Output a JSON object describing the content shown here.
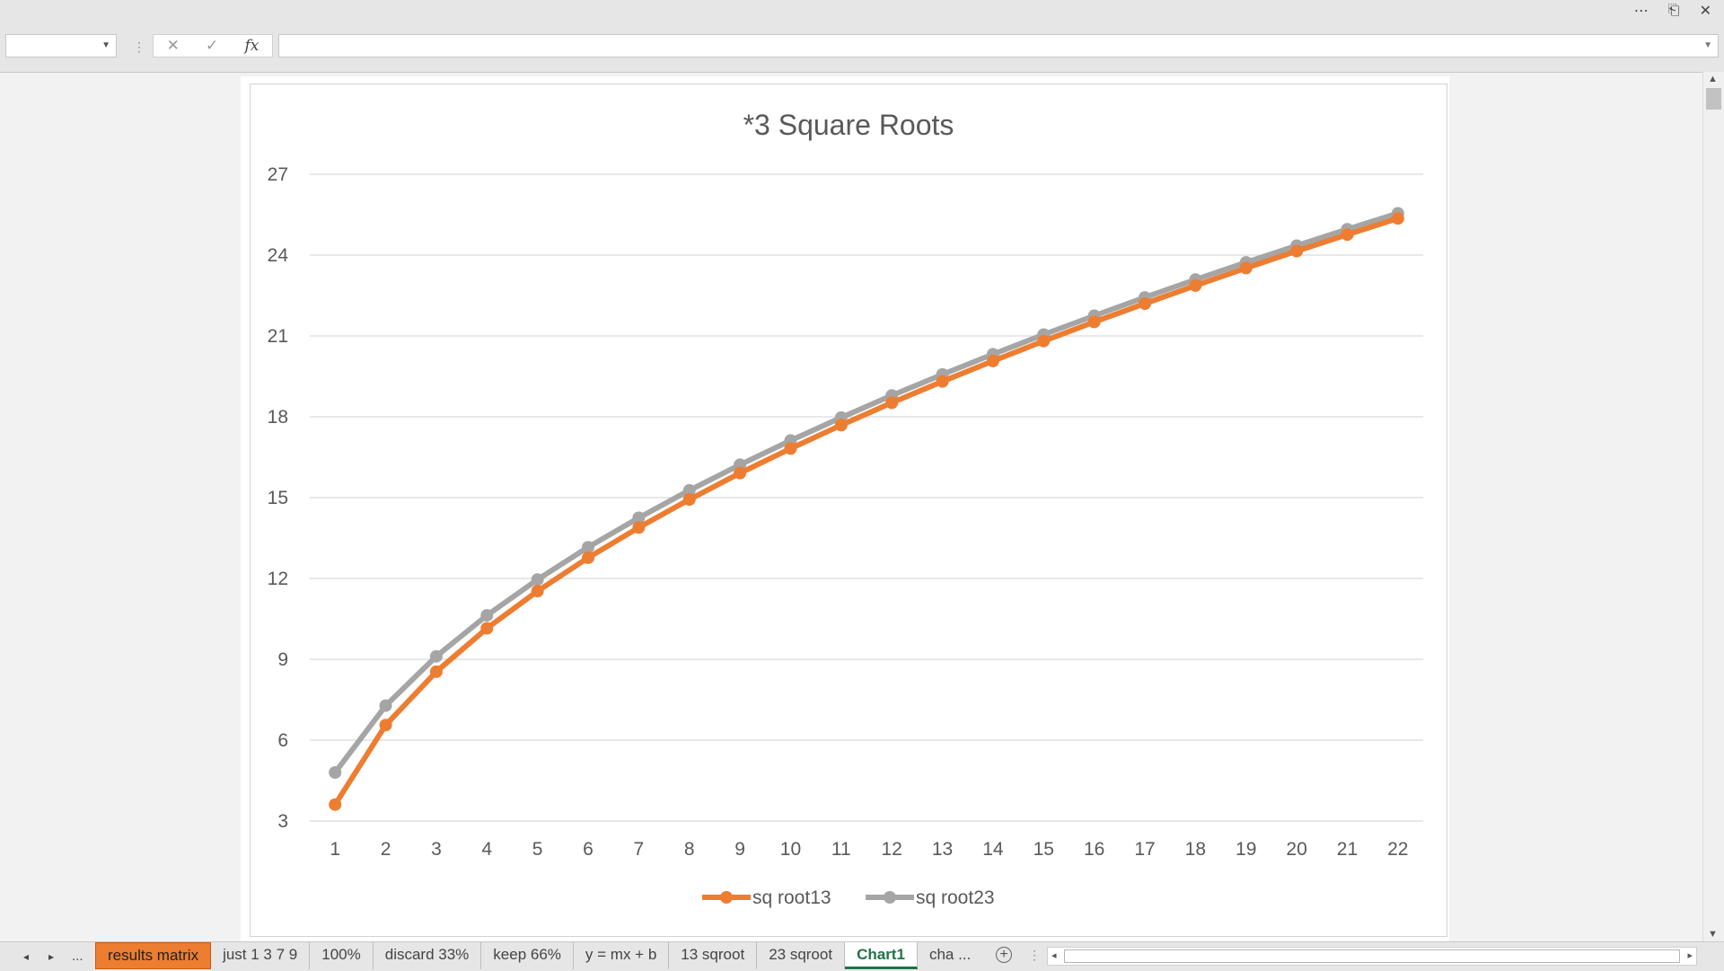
{
  "window": {
    "more_icon": "⋯",
    "restore_icon": "⎗",
    "close_icon": "✕"
  },
  "formula_bar": {
    "name_box_value": "",
    "cancel_icon": "✕",
    "enter_icon": "✓",
    "fx_label": "fx",
    "formula_value": ""
  },
  "chart_data": {
    "type": "line",
    "title": "*3 Square Roots",
    "xlabel": "",
    "ylabel": "",
    "categories": [
      "1",
      "2",
      "3",
      "4",
      "5",
      "6",
      "7",
      "8",
      "9",
      "10",
      "11",
      "12",
      "13",
      "14",
      "15",
      "16",
      "17",
      "18",
      "19",
      "20",
      "21",
      "22"
    ],
    "ylim": [
      3,
      27
    ],
    "yticks": [
      3,
      6,
      9,
      12,
      15,
      18,
      21,
      24,
      27
    ],
    "grid": true,
    "legend_position": "bottom",
    "series": [
      {
        "name": "sq root13",
        "color": "#ED7D31",
        "values": [
          3.61,
          6.56,
          8.54,
          10.15,
          11.53,
          12.77,
          13.89,
          14.93,
          15.91,
          16.82,
          17.69,
          18.52,
          19.31,
          20.07,
          20.81,
          21.52,
          22.2,
          22.87,
          23.52,
          24.15,
          24.76,
          25.36
        ]
      },
      {
        "name": "sq root23",
        "color": "#A5A5A5",
        "values": [
          4.8,
          7.28,
          9.11,
          10.63,
          11.96,
          13.16,
          14.25,
          15.27,
          16.22,
          17.12,
          17.97,
          18.79,
          19.57,
          20.32,
          21.05,
          21.75,
          22.43,
          23.09,
          23.73,
          24.35,
          24.96,
          25.55
        ]
      }
    ]
  },
  "tabs": {
    "first_icon": "◂",
    "next_icon": "▸",
    "overflow_label": "...",
    "items": [
      {
        "label": "results matrix"
      },
      {
        "label": "just 1 3 7 9"
      },
      {
        "label": "100%"
      },
      {
        "label": "discard 33%"
      },
      {
        "label": "keep 66%"
      },
      {
        "label": "y = mx + b"
      },
      {
        "label": "13 sqroot"
      },
      {
        "label": "23 sqroot"
      },
      {
        "label": "Chart1"
      },
      {
        "label": "cha ..."
      }
    ],
    "add_label": "+"
  },
  "scrollbars": {
    "up_icon": "▲",
    "down_icon": "▼",
    "left_icon": "◂",
    "right_icon": "▸"
  }
}
